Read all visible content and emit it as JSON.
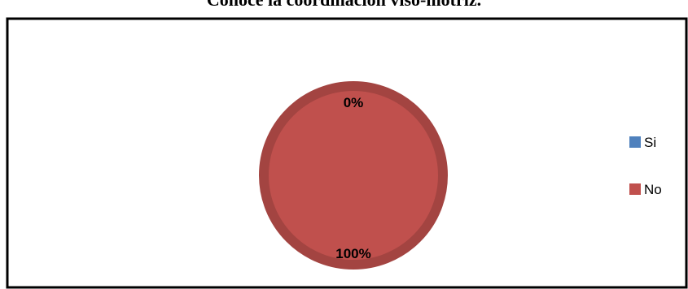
{
  "chart_data": {
    "type": "pie",
    "title": "Conoce la coordinación viso-motriz.",
    "categories": [
      "Si",
      "No"
    ],
    "values": [
      0,
      100
    ],
    "data_labels": [
      "0%",
      "100%"
    ],
    "colors": [
      "#4f81bd",
      "#c0504d"
    ],
    "legend_position": "right"
  }
}
